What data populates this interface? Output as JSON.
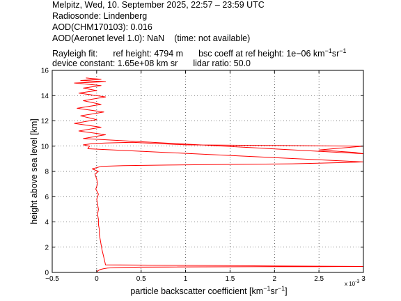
{
  "header": {
    "line1": "Melpitz, Wed, 10. September 2025, 22:57 – 23:59 UTC",
    "line2": "Radiosonde: Lindenberg",
    "line3": "AOD(CHM170103): 0.016",
    "line4_a": "AOD(Aeronet level 1.0): NaN",
    "line4_b": "(time: not available)",
    "line5_a": "Rayleigh fit:",
    "line5_b": "ref height: 4794 m",
    "line5_c": "bsc coeff at ref height: 1e−06 km",
    "line5_sup1": "−1",
    "line5_d": "sr",
    "line5_sup2": "−1",
    "line6_a": "device constant: 1.65e+08 km sr",
    "line6_b": "lidar ratio: 50.0"
  },
  "chart_data": {
    "type": "line",
    "xlabel_main": "particle backscatter coefficient [km",
    "xlabel_sup1": "−1",
    "xlabel_mid": "sr",
    "xlabel_sup2": "−1",
    "xlabel_end": "]",
    "ylabel": "height above sea level [km]",
    "x_multiplier_label": "x 10",
    "x_multiplier_exp": "-3",
    "xlim": [
      -0.5,
      3
    ],
    "ylim": [
      0,
      16
    ],
    "xticks": [
      -0.5,
      0,
      0.5,
      1,
      1.5,
      2,
      2.5,
      3
    ],
    "xtick_labels": [
      "−0.5",
      "0",
      "0.5",
      "1",
      "1.5",
      "2",
      "2.5",
      "3"
    ],
    "yticks": [
      0,
      2,
      4,
      6,
      8,
      10,
      12,
      14,
      16
    ],
    "ytick_labels": [
      "0",
      "2",
      "4",
      "6",
      "8",
      "10",
      "12",
      "14",
      "16"
    ],
    "grid": true,
    "series": [
      {
        "color": "#ff0000",
        "x": [
          0.0,
          0.0,
          0.01,
          0.02,
          0.03,
          0.05,
          0.08,
          0.1,
          0.12,
          0.15,
          0.2,
          0.3,
          0.5,
          0.8,
          1.2,
          1.8,
          2.5,
          3.0,
          0.1,
          0.08,
          0.06,
          0.05,
          0.04,
          0.03,
          0.03,
          0.02,
          0.02,
          0.01,
          0.02,
          0.01,
          0.0,
          0.02,
          -0.01,
          0.01,
          0.0,
          -0.02,
          0.02,
          -0.05,
          0.0,
          0.05,
          0.3,
          0.8,
          1.5,
          2.2,
          2.8,
          3.0,
          -0.1,
          -0.08,
          -0.15,
          -0.05,
          0.1,
          0.4,
          1.0,
          2.0,
          3.0,
          2.5,
          2.9,
          3.0,
          -0.15,
          0.1,
          -0.2,
          0.05,
          -0.25,
          0.0,
          -0.18,
          0.08,
          -0.22,
          0.05,
          -0.15,
          0.1,
          -0.2,
          0.0,
          -0.15,
          0.05,
          -0.25,
          0.1,
          -0.18,
          0.05,
          -0.12
        ],
        "y": [
          0.0,
          0.05,
          0.1,
          0.15,
          0.2,
          0.25,
          0.3,
          0.32,
          0.34,
          0.36,
          0.38,
          0.4,
          0.42,
          0.43,
          0.44,
          0.45,
          0.46,
          0.47,
          0.6,
          1.2,
          1.8,
          2.2,
          2.6,
          3.0,
          3.4,
          3.8,
          4.2,
          4.6,
          5.0,
          5.4,
          5.8,
          6.2,
          6.6,
          7.0,
          7.4,
          7.8,
          8.0,
          8.2,
          8.3,
          8.4,
          8.45,
          8.5,
          8.55,
          8.6,
          8.7,
          8.75,
          9.8,
          10.0,
          10.1,
          10.2,
          10.25,
          10.3,
          10.1,
          10.05,
          10.0,
          9.7,
          9.5,
          9.4,
          10.6,
          10.9,
          11.2,
          11.5,
          11.8,
          12.1,
          12.4,
          12.7,
          13.0,
          13.3,
          13.6,
          13.9,
          14.2,
          14.4,
          14.6,
          14.8,
          15.0,
          15.1,
          15.2,
          15.3,
          15.4
        ]
      }
    ]
  }
}
